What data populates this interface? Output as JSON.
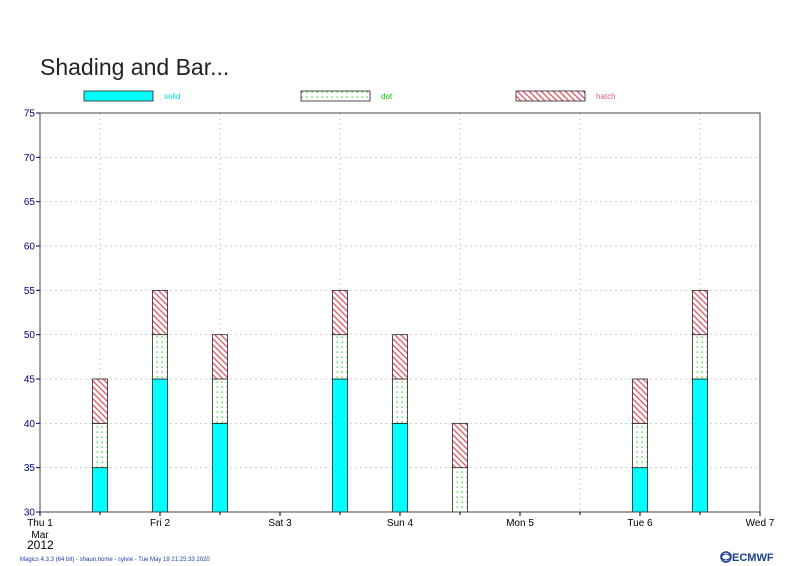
{
  "chart_data": {
    "type": "bar",
    "stacked": true,
    "title": "Shading and Bar...",
    "ylim": [
      30,
      75
    ],
    "yticks": [
      "30",
      "35",
      "40",
      "45",
      "50",
      "55",
      "60",
      "65",
      "70",
      "75"
    ],
    "grid": true,
    "legend_placement": "top",
    "x_ticks": [
      {
        "label": "Thu 1",
        "date": "2012-03-01",
        "color": "#000000"
      },
      {
        "label": "Fri 2",
        "date": "2012-03-02",
        "color": "#000000"
      },
      {
        "label": "Sat 3",
        "date": "2012-03-03",
        "color": "#000000"
      },
      {
        "label": "Sun 4",
        "date": "2012-03-04",
        "color": "#ff0000"
      },
      {
        "label": "Mon 5",
        "date": "2012-03-05",
        "color": "#000000"
      },
      {
        "label": "Tue 6",
        "date": "2012-03-06",
        "color": "#000000"
      },
      {
        "label": "Wed 7",
        "date": "2012-03-07",
        "color": "#000000"
      }
    ],
    "x_sub_labels": {
      "month": "Mar",
      "year": "2012"
    },
    "x": [
      "2012-03-01 12:00",
      "2012-03-02 00:00",
      "2012-03-02 12:00",
      "2012-03-03 12:00",
      "2012-03-04 00:00",
      "2012-03-04 12:00",
      "2012-03-06 00:00",
      "2012-03-06 12:00"
    ],
    "series": [
      {
        "name": "solid",
        "style": "solid",
        "color": "#00ffff",
        "label_color": "#00e0e0",
        "bars": [
          [
            30,
            35
          ],
          [
            30,
            45
          ],
          [
            30,
            40
          ],
          [
            30,
            45
          ],
          [
            30,
            40
          ],
          null,
          [
            30,
            35
          ],
          [
            30,
            45
          ]
        ]
      },
      {
        "name": "dot",
        "style": "dot",
        "color": "#00cc00",
        "label_color": "#00cc00",
        "bars": [
          [
            35,
            40
          ],
          [
            45,
            50
          ],
          [
            40,
            45
          ],
          [
            45,
            50
          ],
          [
            40,
            45
          ],
          [
            30,
            35
          ],
          [
            35,
            40
          ],
          [
            45,
            50
          ]
        ]
      },
      {
        "name": "hatch",
        "style": "hatch",
        "color": "#e06070",
        "label_color": "#e06070",
        "bars": [
          [
            40,
            45
          ],
          [
            50,
            55
          ],
          [
            45,
            50
          ],
          [
            50,
            55
          ],
          [
            45,
            50
          ],
          [
            35,
            40
          ],
          [
            40,
            45
          ],
          [
            50,
            55
          ]
        ]
      }
    ]
  },
  "footer": {
    "text": "Magics 4.3.3 (64 bit) - shaun.home - sylvie - Tue May 19 21:25:33 2020",
    "logo": "ECMWF",
    "logo_icon": "ecmwf-logo-icon"
  }
}
